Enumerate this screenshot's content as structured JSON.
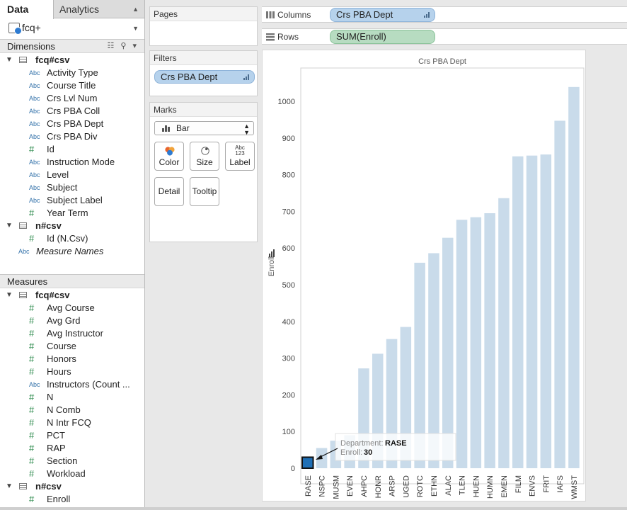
{
  "tabs": {
    "data": "Data",
    "analytics": "Analytics"
  },
  "source": {
    "name": "fcq+"
  },
  "dimensions": {
    "header": "Dimensions",
    "groups": [
      {
        "name": "fcq#csv",
        "items": [
          {
            "type": "Abc",
            "label": "Activity Type"
          },
          {
            "type": "Abc",
            "label": "Course Title"
          },
          {
            "type": "Abc",
            "label": "Crs Lvl Num"
          },
          {
            "type": "Abc",
            "label": "Crs PBA Coll"
          },
          {
            "type": "Abc",
            "label": "Crs PBA Dept"
          },
          {
            "type": "Abc",
            "label": "Crs PBA Div"
          },
          {
            "type": "#",
            "label": "Id"
          },
          {
            "type": "Abc",
            "label": "Instruction Mode"
          },
          {
            "type": "Abc",
            "label": "Level"
          },
          {
            "type": "Abc",
            "label": "Subject"
          },
          {
            "type": "Abc",
            "label": "Subject Label"
          },
          {
            "type": "#",
            "label": "Year Term"
          }
        ]
      },
      {
        "name": "n#csv",
        "items": [
          {
            "type": "#",
            "label": "Id (N.Csv)"
          }
        ]
      }
    ],
    "extra": {
      "type": "Abc",
      "label": "Measure Names"
    }
  },
  "measures": {
    "header": "Measures",
    "groups": [
      {
        "name": "fcq#csv",
        "items": [
          {
            "type": "#",
            "label": "Avg Course"
          },
          {
            "type": "#",
            "label": "Avg Grd"
          },
          {
            "type": "#",
            "label": "Avg Instructor"
          },
          {
            "type": "#",
            "label": "Course"
          },
          {
            "type": "#",
            "label": "Honors"
          },
          {
            "type": "#",
            "label": "Hours"
          },
          {
            "type": "Abc",
            "label": "Instructors (Count ..."
          },
          {
            "type": "#",
            "label": "N"
          },
          {
            "type": "#",
            "label": "N Comb"
          },
          {
            "type": "#",
            "label": "N Intr FCQ"
          },
          {
            "type": "#",
            "label": "PCT"
          },
          {
            "type": "#",
            "label": "RAP"
          },
          {
            "type": "#",
            "label": "Section"
          },
          {
            "type": "#",
            "label": "Workload"
          }
        ]
      },
      {
        "name": "n#csv",
        "items": [
          {
            "type": "#",
            "label": "Enroll"
          }
        ]
      }
    ]
  },
  "cards": {
    "pages": "Pages",
    "filters": "Filters",
    "filter_pill": "Crs PBA Dept",
    "marks": "Marks",
    "mark_type": "Bar",
    "buttons": {
      "color": "Color",
      "size": "Size",
      "label": "Label",
      "detail": "Detail",
      "tooltip": "Tooltip",
      "label_icon": "Abc\n123"
    }
  },
  "shelves": {
    "columns": {
      "name": "Columns",
      "pill": "Crs PBA Dept"
    },
    "rows": {
      "name": "Rows",
      "pill": "SUM(Enroll)"
    }
  },
  "tooltip": {
    "dept_label": "Department:",
    "dept_value": "RASE",
    "enroll_label": "Enroll:",
    "enroll_value": "30"
  },
  "colors": {
    "bar": "#c9dbea",
    "selected": "#1f6fb5"
  },
  "chart_data": {
    "type": "bar",
    "title": "Crs PBA Dept",
    "xlabel": "",
    "ylabel": "Enroll",
    "ylim": [
      0,
      1060
    ],
    "yticks": [
      0,
      100,
      200,
      300,
      400,
      500,
      600,
      700,
      800,
      900,
      1000
    ],
    "categories": [
      "RASE",
      "NSPC",
      "MUSM",
      "EVEN",
      "AHPC",
      "HONR",
      "ARSP",
      "UGED",
      "ROTC",
      "ETHN",
      "ALAC",
      "TLEN",
      "HUEN",
      "HUMN",
      "EMEN",
      "FILM",
      "ENVS",
      "FRIT",
      "IAFS",
      "WMST"
    ],
    "values": [
      30,
      55,
      75,
      90,
      272,
      312,
      352,
      385,
      560,
      586,
      628,
      677,
      684,
      695,
      736,
      850,
      852,
      855,
      947,
      1039
    ],
    "selected": "RASE"
  }
}
